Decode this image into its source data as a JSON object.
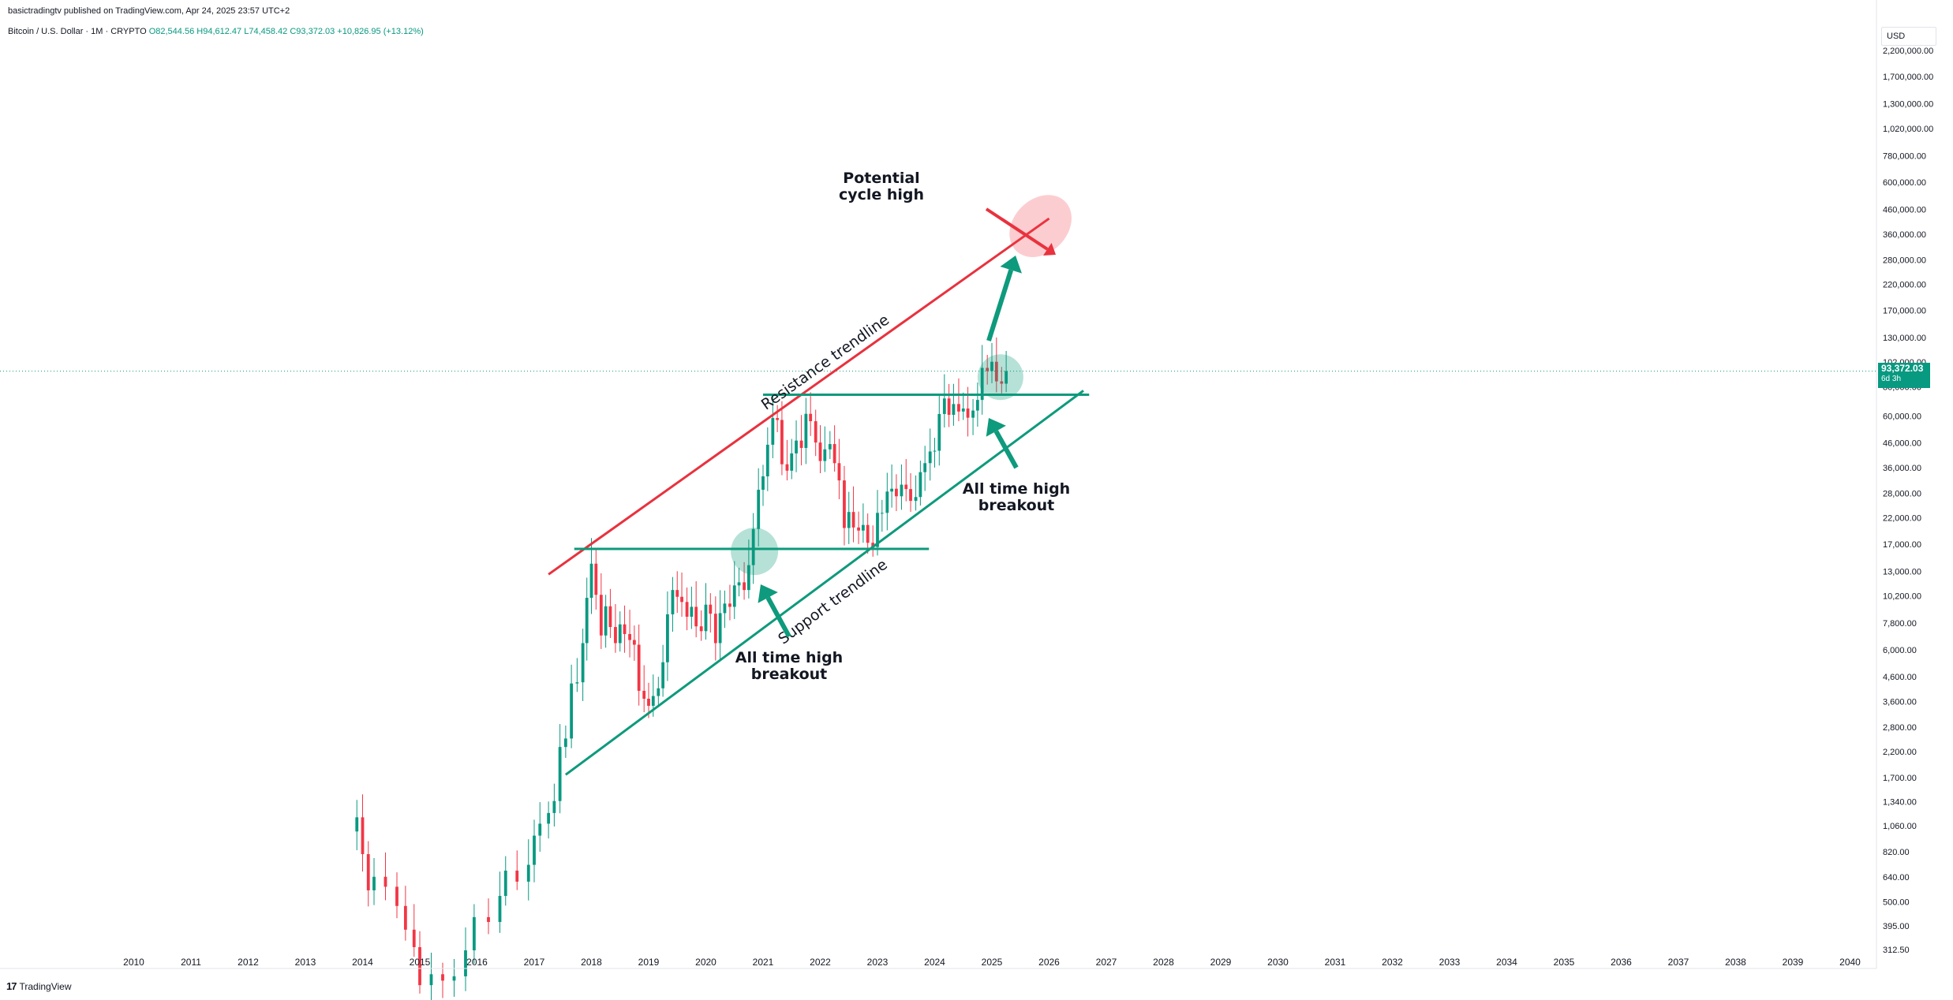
{
  "header": {
    "publisher": "basictradingtv published on TradingView.com, Apr 24, 2025 23:57 UTC+2",
    "symbol": "Bitcoin / U.S. Dollar · 1M · CRYPTO",
    "open": "O82,544.56",
    "high": "H94,612.47",
    "low": "L74,458.42",
    "close": "C93,372.03",
    "change": "+10,826.95 (+13.12%)"
  },
  "currency": "USD",
  "price_tag": {
    "price": "93,372.03",
    "countdown": "6d 3h"
  },
  "brand": "TradingView",
  "colors": {
    "up": "#089981",
    "down": "#f23645",
    "support": "#0e9a7c",
    "resistance": "#e8323e",
    "grid": "#f0f3fa"
  },
  "chart_data": {
    "type": "candlestick",
    "title": "",
    "y_scale": "log",
    "ylim": [
      250,
      2500000
    ],
    "x_range": [
      2009.0,
      2033.3
    ],
    "y_tick_labels": [
      "2,200,000.00",
      "1,700,000.00",
      "1,300,000.00",
      "1,020,000.00",
      "780,000.00",
      "600,000.00",
      "460,000.00",
      "360,000.00",
      "280,000.00",
      "220,000.00",
      "170,000.00",
      "130,000.00",
      "102,000.00",
      "80,000.00",
      "60,000.00",
      "46,000.00",
      "36,000.00",
      "28,000.00",
      "22,000.00",
      "17,000.00",
      "13,000.00",
      "10,200.00",
      "7,800.00",
      "6,000.00",
      "4,600.00",
      "3,600.00",
      "2,800.00",
      "2,200.00",
      "1,700.00",
      "1,340.00",
      "1,060.00",
      "820.00",
      "640.00",
      "500.00",
      "395.00",
      "312.50"
    ],
    "x_tick_labels": [
      "2010",
      "2011",
      "2012",
      "2013",
      "2014",
      "2015",
      "2016",
      "2017",
      "2018",
      "2019",
      "2020",
      "2021",
      "2022",
      "2023",
      "2024",
      "2025",
      "2026",
      "2027",
      "2028",
      "2029",
      "2030",
      "2031",
      "2032",
      "2033",
      "2034",
      "2035",
      "2036",
      "2037",
      "2038",
      "2039",
      "2040",
      "204"
    ],
    "last_price": 93372.03,
    "close_path": [
      [
        2013.85,
        1000
      ],
      [
        2013.9,
        1150
      ],
      [
        2014.0,
        800
      ],
      [
        2014.1,
        560
      ],
      [
        2014.2,
        640
      ],
      [
        2014.4,
        580
      ],
      [
        2014.6,
        480
      ],
      [
        2014.75,
        380
      ],
      [
        2014.9,
        320
      ],
      [
        2015.0,
        220
      ],
      [
        2015.2,
        245
      ],
      [
        2015.4,
        230
      ],
      [
        2015.6,
        240
      ],
      [
        2015.8,
        310
      ],
      [
        2015.95,
        430
      ],
      [
        2016.2,
        410
      ],
      [
        2016.4,
        530
      ],
      [
        2016.5,
        680
      ],
      [
        2016.7,
        610
      ],
      [
        2016.9,
        720
      ],
      [
        2017.0,
        960
      ],
      [
        2017.1,
        1080
      ],
      [
        2017.25,
        1200
      ],
      [
        2017.35,
        1350
      ],
      [
        2017.45,
        2300
      ],
      [
        2017.55,
        2500
      ],
      [
        2017.65,
        4300
      ],
      [
        2017.75,
        4350
      ],
      [
        2017.85,
        6400
      ],
      [
        2017.92,
        10000
      ],
      [
        2018.0,
        14000
      ],
      [
        2018.08,
        10300
      ],
      [
        2018.17,
        6900
      ],
      [
        2018.25,
        9200
      ],
      [
        2018.33,
        7500
      ],
      [
        2018.42,
        6400
      ],
      [
        2018.5,
        7700
      ],
      [
        2018.58,
        7000
      ],
      [
        2018.67,
        6600
      ],
      [
        2018.75,
        6300
      ],
      [
        2018.83,
        4000
      ],
      [
        2018.92,
        3700
      ],
      [
        2019.0,
        3450
      ],
      [
        2019.08,
        3800
      ],
      [
        2019.17,
        4100
      ],
      [
        2019.25,
        5300
      ],
      [
        2019.33,
        8500
      ],
      [
        2019.42,
        10800
      ],
      [
        2019.5,
        10100
      ],
      [
        2019.58,
        9600
      ],
      [
        2019.67,
        8300
      ],
      [
        2019.75,
        9150
      ],
      [
        2019.83,
        7550
      ],
      [
        2019.92,
        7200
      ],
      [
        2020.0,
        9350
      ],
      [
        2020.08,
        8550
      ],
      [
        2020.17,
        6400
      ],
      [
        2020.25,
        8600
      ],
      [
        2020.33,
        9450
      ],
      [
        2020.42,
        9150
      ],
      [
        2020.5,
        11300
      ],
      [
        2020.58,
        11650
      ],
      [
        2020.67,
        10800
      ],
      [
        2020.75,
        13800
      ],
      [
        2020.83,
        19700
      ],
      [
        2020.92,
        29000
      ],
      [
        2021.0,
        33100
      ],
      [
        2021.08,
        45200
      ],
      [
        2021.17,
        58800
      ],
      [
        2021.25,
        57700
      ],
      [
        2021.33,
        37300
      ],
      [
        2021.42,
        35000
      ],
      [
        2021.5,
        41500
      ],
      [
        2021.58,
        47100
      ],
      [
        2021.67,
        43800
      ],
      [
        2021.75,
        61300
      ],
      [
        2021.83,
        57000
      ],
      [
        2021.92,
        46200
      ],
      [
        2022.0,
        38500
      ],
      [
        2022.08,
        43200
      ],
      [
        2022.17,
        45500
      ],
      [
        2022.25,
        37700
      ],
      [
        2022.33,
        31800
      ],
      [
        2022.42,
        19900
      ],
      [
        2022.5,
        23300
      ],
      [
        2022.58,
        20000
      ],
      [
        2022.67,
        19400
      ],
      [
        2022.75,
        20500
      ],
      [
        2022.83,
        17200
      ],
      [
        2022.92,
        16500
      ],
      [
        2023.0,
        23100
      ],
      [
        2023.08,
        23100
      ],
      [
        2023.17,
        28500
      ],
      [
        2023.25,
        29300
      ],
      [
        2023.33,
        27200
      ],
      [
        2023.42,
        30500
      ],
      [
        2023.5,
        29200
      ],
      [
        2023.58,
        26000
      ],
      [
        2023.67,
        27000
      ],
      [
        2023.75,
        34500
      ],
      [
        2023.83,
        37700
      ],
      [
        2023.92,
        42300
      ],
      [
        2024.0,
        42600
      ],
      [
        2024.08,
        61200
      ],
      [
        2024.17,
        71300
      ],
      [
        2024.25,
        60700
      ],
      [
        2024.33,
        67500
      ],
      [
        2024.42,
        62700
      ],
      [
        2024.5,
        64600
      ],
      [
        2024.58,
        59000
      ],
      [
        2024.67,
        63300
      ],
      [
        2024.75,
        70300
      ],
      [
        2024.83,
        96400
      ],
      [
        2024.92,
        93400
      ],
      [
        2025.0,
        102400
      ],
      [
        2025.08,
        84400
      ],
      [
        2025.17,
        82500
      ],
      [
        2025.25,
        93372
      ]
    ],
    "trendlines": [
      {
        "label": "Resistance trendline",
        "kind": "resistance",
        "from": [
          2017.25,
          12600
        ],
        "to": [
          2026.0,
          420000
        ]
      },
      {
        "label": "Support trendline",
        "kind": "support",
        "from": [
          2017.55,
          1750
        ],
        "to": [
          2026.6,
          77000
        ]
      },
      {
        "label": "",
        "kind": "horizontal",
        "from": [
          2017.7,
          16200
        ],
        "to": [
          2023.9,
          16200
        ]
      },
      {
        "label": "",
        "kind": "horizontal",
        "from": [
          2021.0,
          74000
        ],
        "to": [
          2026.7,
          74000
        ]
      }
    ],
    "annotations": [
      {
        "text": "Potential cycle high",
        "lines": [
          "Potential",
          "cycle high"
        ]
      },
      {
        "text": "All time high breakout",
        "lines": [
          "All time high",
          "breakout"
        ],
        "near": "2021"
      },
      {
        "text": "All time high breakout",
        "lines": [
          "All time high",
          "breakout"
        ],
        "near": "2025"
      }
    ]
  }
}
